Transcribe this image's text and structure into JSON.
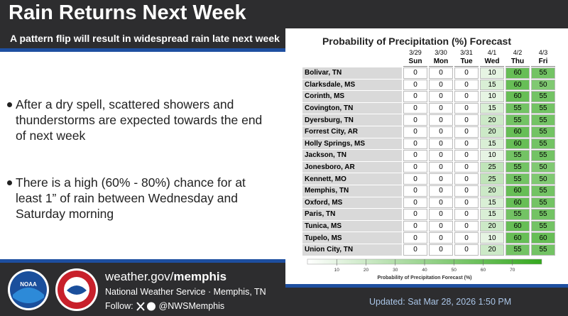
{
  "header": {
    "title": "Rain Returns Next Week",
    "subtitle": "A pattern flip will result in widespread rain late next week"
  },
  "bullets": [
    "After a dry spell, scattered showers and thunderstorms are expected towards the end of next week",
    "There is a high (60% - 80%) chance for at least 1” of rain between Wednesday and Saturday morning"
  ],
  "table": {
    "title": "Probability of Precipitation (%) Forecast",
    "dates": [
      "3/29",
      "3/30",
      "3/31",
      "4/1",
      "4/2",
      "4/3"
    ],
    "days": [
      "Sun",
      "Mon",
      "Tue",
      "Wed",
      "Thu",
      "Fri"
    ],
    "rows": [
      {
        "city": "Bolivar, TN",
        "values": [
          0,
          0,
          0,
          10,
          60,
          55
        ]
      },
      {
        "city": "Clarksdale, MS",
        "values": [
          0,
          0,
          0,
          15,
          60,
          50
        ]
      },
      {
        "city": "Corinth, MS",
        "values": [
          0,
          0,
          0,
          10,
          60,
          55
        ]
      },
      {
        "city": "Covington, TN",
        "values": [
          0,
          0,
          0,
          15,
          55,
          55
        ]
      },
      {
        "city": "Dyersburg, TN",
        "values": [
          0,
          0,
          0,
          20,
          55,
          55
        ]
      },
      {
        "city": "Forrest City, AR",
        "values": [
          0,
          0,
          0,
          20,
          60,
          55
        ]
      },
      {
        "city": "Holly Springs, MS",
        "values": [
          0,
          0,
          0,
          15,
          60,
          55
        ]
      },
      {
        "city": "Jackson, TN",
        "values": [
          0,
          0,
          0,
          10,
          55,
          55
        ]
      },
      {
        "city": "Jonesboro, AR",
        "values": [
          0,
          0,
          0,
          25,
          55,
          50
        ]
      },
      {
        "city": "Kennett, MO",
        "values": [
          0,
          0,
          0,
          25,
          55,
          50
        ]
      },
      {
        "city": "Memphis, TN",
        "values": [
          0,
          0,
          0,
          20,
          60,
          55
        ]
      },
      {
        "city": "Oxford, MS",
        "values": [
          0,
          0,
          0,
          15,
          60,
          55
        ]
      },
      {
        "city": "Paris, TN",
        "values": [
          0,
          0,
          0,
          15,
          55,
          55
        ]
      },
      {
        "city": "Tunica, MS",
        "values": [
          0,
          0,
          0,
          20,
          60,
          55
        ]
      },
      {
        "city": "Tupelo, MS",
        "values": [
          0,
          0,
          0,
          10,
          60,
          60
        ]
      },
      {
        "city": "Union City, TN",
        "values": [
          0,
          0,
          0,
          20,
          55,
          55
        ]
      }
    ],
    "legend": {
      "ticks": [
        10,
        20,
        30,
        40,
        50,
        60,
        70
      ],
      "label": "Probability of Precipitation Forecast (%)"
    }
  },
  "footer": {
    "site_prefix": "weather.gov/",
    "site_bold": "memphis",
    "office": "National Weather Service · Memphis, TN",
    "follow": "Follow:",
    "handle": "@NWSMemphis",
    "updated": "Updated: Sat Mar 28, 2026 1:50 PM",
    "noaa": "NOAA"
  }
}
